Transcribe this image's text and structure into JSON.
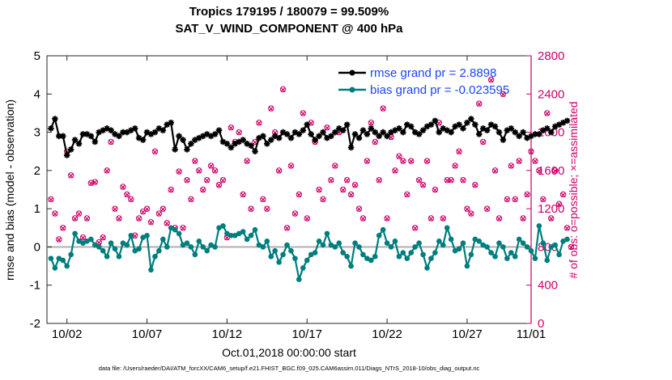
{
  "chart_data": {
    "type": "line",
    "title": "Tropics 179195 / 180079 = 99.509%",
    "subtitle": "SAT_V_WIND_COMPONENT @ 400 hPa",
    "xlabel": "Oct.01,2018 00:00:00 start",
    "ylabel_left": "rmse and bias (model - observation)",
    "ylabel_right": "# of obs: o=possible; ×=assimilated",
    "xlim": [
      0.75,
      31.0
    ],
    "ylim_left": [
      -2,
      5
    ],
    "ylim_right": [
      0,
      2800
    ],
    "x_ticks": [
      {
        "value": 2,
        "label": "10/02"
      },
      {
        "value": 7,
        "label": "10/07"
      },
      {
        "value": 12,
        "label": "10/12"
      },
      {
        "value": 17,
        "label": "10/17"
      },
      {
        "value": 22,
        "label": "10/22"
      },
      {
        "value": 27,
        "label": "10/27"
      },
      {
        "value": 31,
        "label": "11/01"
      }
    ],
    "y_ticks_left": [
      -2,
      -1,
      0,
      1,
      2,
      3,
      4,
      5
    ],
    "y_ticks_right": [
      0,
      400,
      800,
      1200,
      1600,
      2000,
      2400,
      2800
    ],
    "zero_line": 0,
    "legend": {
      "position": "top-right"
    },
    "series": [
      {
        "name": "rmse grand pr = 2.8898",
        "axis": "left",
        "color": "#000000",
        "marker": "star",
        "t0": 1.0,
        "dt": 0.25,
        "values": [
          3.1,
          3.35,
          2.9,
          2.9,
          2.4,
          2.55,
          2.8,
          2.7,
          2.95,
          2.95,
          2.9,
          2.75,
          3.0,
          3.05,
          3.1,
          3.05,
          2.95,
          2.9,
          3.0,
          3.0,
          3.05,
          3.1,
          2.85,
          2.8,
          3.0,
          2.95,
          3.0,
          3.1,
          3.05,
          3.2,
          3.25,
          2.55,
          2.9,
          2.8,
          2.55,
          2.7,
          2.8,
          2.85,
          2.9,
          2.95,
          2.9,
          2.95,
          3.05,
          2.75,
          2.7,
          2.6,
          2.7,
          2.75,
          2.8,
          2.7,
          2.65,
          2.5,
          2.85,
          2.9,
          2.7,
          2.8,
          2.9,
          2.85,
          3.0,
          2.95,
          2.85,
          3.0,
          2.95,
          3.05,
          3.2,
          2.95,
          2.8,
          2.9,
          3.0,
          2.85,
          2.9,
          3.0,
          3.1,
          3.05,
          3.2,
          2.6,
          2.95,
          2.85,
          3.05,
          2.95,
          3.1,
          3.0,
          2.9,
          3.0,
          2.9,
          3.0,
          3.05,
          3.1,
          3.0,
          3.2,
          3.15,
          3.0,
          2.95,
          3.05,
          3.15,
          3.2,
          3.3,
          3.0,
          3.1,
          3.05,
          3.0,
          3.15,
          3.2,
          3.1,
          3.25,
          3.35,
          3.2,
          2.95,
          3.1,
          3.05,
          3.2,
          3.15,
          3.0,
          2.8,
          3.05,
          3.1,
          3.0,
          2.9,
          3.0,
          2.85,
          2.9,
          2.95,
          2.95,
          3.05,
          3.1,
          3.0,
          3.15,
          3.2,
          3.25,
          3.3
        ]
      },
      {
        "name": "bias grand pr = -0.023595",
        "axis": "left",
        "color": "#007d7d",
        "marker": "circle",
        "t0": 1.0,
        "dt": 0.25,
        "values": [
          -0.3,
          -0.55,
          -0.3,
          -0.35,
          -0.5,
          -0.2,
          0.35,
          0.15,
          0.1,
          0.15,
          0.2,
          0.05,
          0.0,
          -0.1,
          -0.25,
          0.1,
          -0.05,
          -0.25,
          0.1,
          0.05,
          0.3,
          -0.1,
          -0.05,
          0.25,
          0.3,
          -0.6,
          -0.25,
          -0.1,
          0.2,
          0.0,
          0.5,
          0.45,
          0.35,
          0.05,
          0.1,
          0.0,
          -0.2,
          0.15,
          0.0,
          -0.1,
          0.05,
          0.0,
          0.5,
          0.55,
          0.35,
          0.3,
          0.3,
          0.35,
          0.4,
          0.2,
          0.3,
          0.45,
          0.05,
          0.0,
          0.15,
          -0.25,
          -0.1,
          -0.4,
          -0.2,
          0.05,
          -0.1,
          -0.3,
          -0.85,
          -0.55,
          -0.35,
          -0.2,
          -0.15,
          0.15,
          0.05,
          0.35,
          0.05,
          0.0,
          0.1,
          -0.15,
          -0.25,
          -0.5,
          0.1,
          0.0,
          -0.2,
          -0.3,
          -0.35,
          -0.25,
          0.3,
          0.45,
          0.1,
          0.0,
          0.15,
          -0.25,
          -0.15,
          -0.3,
          -0.15,
          0.0,
          0.1,
          -0.2,
          -0.55,
          -0.3,
          -0.15,
          0.15,
          0.05,
          0.5,
          0.2,
          -0.1,
          -0.05,
          0.1,
          -0.5,
          -0.2,
          0.2,
          0.15,
          0.05,
          0.0,
          -0.15,
          -0.25,
          0.1,
          0.0,
          -0.3,
          -0.15,
          -0.25,
          0.2,
          0.1,
          0.0,
          -0.1,
          -0.3,
          0.55,
          0.1,
          -0.35,
          0.0,
          0.05,
          -0.2,
          0.15,
          0.2
        ]
      },
      {
        "name": "obs possible",
        "axis": "right",
        "color": "#cc0066",
        "marker": "circle",
        "t0": 1.0,
        "dt": 0.25,
        "values": [
          1300,
          1150,
          880,
          1000,
          1800,
          1550,
          1100,
          1150,
          900,
          1100,
          1470,
          1480,
          850,
          900,
          1600,
          1900,
          1200,
          1100,
          1430,
          1350,
          1300,
          920,
          1100,
          1170,
          1200,
          1060,
          1800,
          1150,
          1200,
          1050,
          1400,
          1000,
          1590,
          1000,
          1500,
          1300,
          1700,
          1600,
          1400,
          1500,
          1650,
          1600,
          1450,
          1500,
          900,
          2050,
          1900,
          2000,
          1350,
          1700,
          1200,
          1900,
          2100,
          1300,
          1200,
          2250,
          2000,
          1600,
          2450,
          1000,
          1650,
          1150,
          1350,
          2200,
          1100,
          2100,
          1900,
          1400,
          1300,
          2050,
          1500,
          1650,
          2000,
          1400,
          1500,
          1350,
          1450,
          1200,
          1100,
          1700,
          2100,
          1900,
          1500,
          2250,
          1100,
          1950,
          1600,
          1750,
          1700,
          1350,
          1700,
          1000,
          1500,
          1450,
          1700,
          1100,
          1400,
          2100,
          1100,
          1500,
          1500,
          1650,
          1800,
          1500,
          1200,
          1150,
          1450,
          2300,
          1900,
          1200,
          2550,
          1600,
          1100,
          2400,
          1300,
          1650,
          1300,
          1700,
          1100,
          1350,
          1800,
          1700,
          1600,
          1300,
          2200,
          1100,
          1600,
          1250,
          1350,
          1000,
          800
        ]
      },
      {
        "name": "obs assimilated",
        "axis": "right",
        "color": "#cc0066",
        "marker": "x",
        "t0": 1.0,
        "dt": 0.25,
        "values": [
          1295,
          1145,
          875,
          995,
          1795,
          1545,
          1095,
          1145,
          895,
          1095,
          1465,
          1475,
          845,
          895,
          1595,
          1895,
          1195,
          1095,
          1425,
          1345,
          1295,
          915,
          1095,
          1165,
          1195,
          1055,
          1795,
          1145,
          1195,
          1045,
          1395,
          995,
          1585,
          995,
          1495,
          1295,
          1695,
          1595,
          1395,
          1495,
          1645,
          1595,
          1445,
          1495,
          895,
          2045,
          1895,
          1995,
          1345,
          1695,
          1195,
          1895,
          2095,
          1295,
          1195,
          2245,
          1995,
          1595,
          2445,
          995,
          1645,
          1145,
          1345,
          2195,
          1095,
          2095,
          1895,
          1395,
          1295,
          2045,
          1495,
          1645,
          1995,
          1395,
          1495,
          1345,
          1445,
          1195,
          1095,
          1695,
          2095,
          1895,
          1495,
          2245,
          1095,
          1945,
          1595,
          1745,
          1695,
          1345,
          1695,
          995,
          1495,
          1445,
          1695,
          1095,
          1395,
          2095,
          1095,
          1495,
          1495,
          1645,
          1795,
          1495,
          1195,
          1145,
          1445,
          2295,
          1895,
          1195,
          2545,
          1595,
          1095,
          2395,
          1295,
          1645,
          1295,
          1695,
          1095,
          1345,
          1795,
          1695,
          1595,
          1295,
          2195,
          1095,
          1595,
          1245,
          1345,
          995,
          795
        ]
      }
    ],
    "footnote": "data file: /Users/raeder/DAI/ATM_forcXX/CAM6_setup/f.e21.FHIST_BGC.f09_025.CAM6assim.011/Diags_NTrS_2018-10/obs_diag_output.nc"
  },
  "colors": {
    "rmse": "#000000",
    "bias": "#007d7d",
    "obs": "#cc0066",
    "legend_text": "#1a44ff",
    "zero_line": "#b3b3b3"
  }
}
